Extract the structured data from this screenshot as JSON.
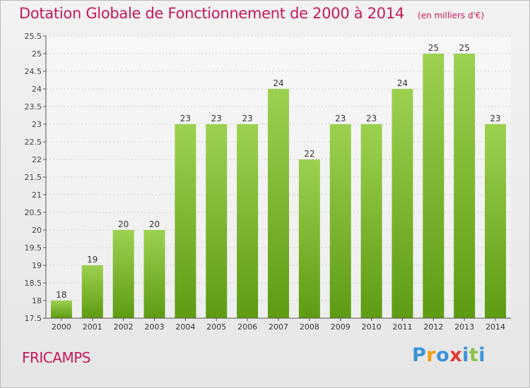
{
  "header": {
    "title": "Dotation Globale de Fonctionnement de 2000 à 2014",
    "subtitle": "(en milliers d'€)"
  },
  "footer": {
    "commune": "FRICAMPS",
    "brand_letters": [
      {
        "ch": "P",
        "color": "#3a93d8"
      },
      {
        "ch": "r",
        "color": "#f39c12"
      },
      {
        "ch": "o",
        "color": "#3a93d8"
      },
      {
        "ch": "x",
        "color": "#e53935"
      },
      {
        "ch": "i",
        "color": "#3a93d8"
      },
      {
        "ch": "t",
        "color": "#8bc34a"
      },
      {
        "ch": "i",
        "color": "#3a93d8"
      }
    ]
  },
  "chart_data": {
    "type": "bar",
    "categories": [
      "2000",
      "2001",
      "2002",
      "2003",
      "2004",
      "2005",
      "2006",
      "2007",
      "2008",
      "2009",
      "2010",
      "2011",
      "2012",
      "2013",
      "2014"
    ],
    "values": [
      18,
      19,
      20,
      20,
      23,
      23,
      23,
      24,
      22,
      23,
      23,
      24,
      25,
      25,
      23
    ],
    "data_labels": [
      "18",
      "19",
      "20",
      "20",
      "23",
      "23",
      "23",
      "24",
      "22",
      "23",
      "23",
      "24",
      "25",
      "25",
      "23"
    ],
    "ylim": [
      17.5,
      25.5
    ],
    "yticks": [
      "17.5",
      "18",
      "18.5",
      "19",
      "19.5",
      "20",
      "20.5",
      "21",
      "21.5",
      "22",
      "22.5",
      "23",
      "23.5",
      "24",
      "24.5",
      "25",
      "25.5"
    ],
    "grid": true,
    "bar_color_top": "#9cd150",
    "bar_color_bottom": "#5e9b12",
    "xlabel": "",
    "ylabel": ""
  }
}
